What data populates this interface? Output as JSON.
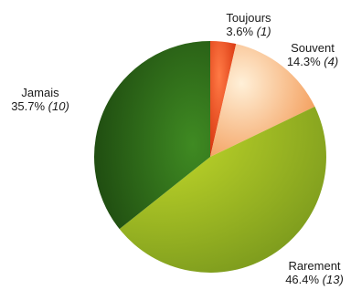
{
  "chart_data": {
    "type": "pie",
    "title": "",
    "slices": [
      {
        "label": "Toujours",
        "percent_text": "3.6%",
        "count_text": "(1)",
        "value": 1,
        "color": "#e8401c"
      },
      {
        "label": "Souvent",
        "percent_text": "14.3%",
        "count_text": "(4)",
        "value": 4,
        "color": "#f7a468"
      },
      {
        "label": "Rarement",
        "percent_text": "46.4%",
        "count_text": "(13)",
        "value": 13,
        "color": "#9cb82a"
      },
      {
        "label": "Jamais",
        "percent_text": "35.7%",
        "count_text": "(10)",
        "value": 10,
        "color": "#2f6a17"
      }
    ]
  }
}
